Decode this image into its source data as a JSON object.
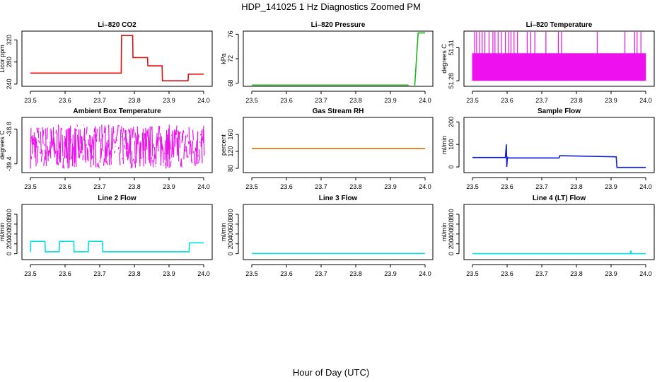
{
  "title": "HDP_141025  1 Hz Diagnostics Zoomed PM",
  "x_caption": "Hour of Day (UTC)",
  "chart_data": [
    {
      "type": "line",
      "title": "Li–820 CO2",
      "ylabel": "Licor ppm",
      "color": "#e01010",
      "xlim": [
        23.5,
        24.0
      ],
      "ylim": [
        236,
        336
      ],
      "xticks": [
        "23.5",
        "23.6",
        "23.7",
        "23.8",
        "23.9",
        "24.0"
      ],
      "yticks": [
        240,
        280,
        320
      ],
      "series": [
        {
          "x": [
            23.5,
            23.762,
            23.763,
            23.795,
            23.796,
            23.838,
            23.839,
            23.88,
            23.881,
            23.955,
            23.956,
            24.0
          ],
          "y": [
            260,
            260,
            328,
            328,
            288,
            288,
            273,
            273,
            246,
            246,
            258,
            258
          ]
        }
      ]
    },
    {
      "type": "line",
      "title": "Li–820 Pressure",
      "ylabel": "kPa",
      "color": "#1ab81a",
      "xlim": [
        23.5,
        24.0
      ],
      "ylim": [
        67.5,
        76.5
      ],
      "xticks": [
        "23.5",
        "23.6",
        "23.7",
        "23.8",
        "23.9",
        "24.0"
      ],
      "yticks": [
        68,
        72,
        76
      ],
      "series": [
        {
          "x": [
            23.5,
            23.95,
            23.96,
            23.97,
            23.98,
            24.0
          ],
          "y": [
            67.7,
            67.7,
            67.4,
            67.4,
            76.2,
            76.2
          ]
        }
      ]
    },
    {
      "type": "line",
      "title": "Li–820 Temperature",
      "ylabel": "degrees C",
      "color": "#ee10ee",
      "xlim": [
        23.5,
        24.0
      ],
      "ylim": [
        51.275,
        51.325
      ],
      "xticks": [
        "23.5",
        "23.6",
        "23.7",
        "23.8",
        "23.9",
        "24.0"
      ],
      "yticks": [
        51.28,
        51.31
      ],
      "series": [
        {
          "band_low": 51.28,
          "band_high": 51.305,
          "spike_top": 51.325,
          "spikes_x": [
            23.506,
            23.512,
            23.52,
            23.528,
            23.536,
            23.548,
            23.559,
            23.565,
            23.574,
            23.583,
            23.595,
            23.605,
            23.611,
            23.62,
            23.63,
            23.658,
            23.668,
            23.68,
            23.712,
            23.748,
            23.757,
            23.86,
            23.94,
            23.968,
            23.975,
            23.986
          ]
        }
      ]
    },
    {
      "type": "line",
      "title": "Ambient Box Temperature",
      "ylabel": "degrees C",
      "color": "#ee10ee",
      "xlim": [
        23.5,
        24.0
      ],
      "ylim": [
        -39.55,
        -38.6
      ],
      "xticks": [
        "23.5",
        "23.6",
        "23.7",
        "23.8",
        "23.9",
        "24.0"
      ],
      "yticks": [
        -39.4,
        -38.8
      ],
      "series": [
        {
          "noise_center": -39.1,
          "noise_amplitude": 0.38
        }
      ]
    },
    {
      "type": "line",
      "title": "Gas Stream RH",
      "ylabel": "percent",
      "color": "#e07000",
      "xlim": [
        23.5,
        24.0
      ],
      "ylim": [
        70,
        200
      ],
      "xticks": [
        "23.5",
        "23.6",
        "23.7",
        "23.8",
        "23.9",
        "24.0"
      ],
      "yticks": [
        80,
        120,
        160
      ],
      "series": [
        {
          "x": [
            23.5,
            24.0
          ],
          "y": [
            127,
            127
          ]
        }
      ]
    },
    {
      "type": "line",
      "title": "Sample Flow",
      "ylabel": "ml/min",
      "color": "#1020cc",
      "xlim": [
        23.5,
        24.0
      ],
      "ylim": [
        -25,
        220
      ],
      "xticks": [
        "23.5",
        "23.6",
        "23.7",
        "23.8",
        "23.9",
        "24.0"
      ],
      "yticks": [
        0,
        100,
        200
      ],
      "series": [
        {
          "x": [
            23.5,
            23.595,
            23.598,
            23.599,
            23.601,
            23.602,
            23.75,
            23.752,
            23.915,
            23.917,
            24.0
          ],
          "y": [
            42,
            42,
            100,
            0,
            45,
            40,
            40,
            50,
            45,
            -2,
            -2
          ]
        }
      ]
    },
    {
      "type": "line",
      "title": "Line 2 Flow",
      "ylabel": "ml/min",
      "color": "#00e0e0",
      "xlim": [
        23.5,
        24.0
      ],
      "ylim": [
        -120,
        1000
      ],
      "xticks": [
        "23.5",
        "23.6",
        "23.7",
        "23.8",
        "23.9",
        "24.0"
      ],
      "yticks": [
        0,
        200,
        400,
        600,
        800
      ],
      "series": [
        {
          "x": [
            23.5,
            23.501,
            23.542,
            23.543,
            23.583,
            23.584,
            23.625,
            23.626,
            23.667,
            23.668,
            23.708,
            23.709,
            23.958,
            23.959,
            24.0
          ],
          "y": [
            40,
            250,
            250,
            40,
            40,
            250,
            250,
            40,
            40,
            250,
            250,
            40,
            40,
            220,
            220
          ]
        }
      ]
    },
    {
      "type": "line",
      "title": "Line 3 Flow",
      "ylabel": "ml/min",
      "color": "#00e0e0",
      "xlim": [
        23.5,
        24.0
      ],
      "ylim": [
        -120,
        1000
      ],
      "xticks": [
        "23.5",
        "23.6",
        "23.7",
        "23.8",
        "23.9",
        "24.0"
      ],
      "yticks": [
        0,
        200,
        400,
        600,
        800
      ],
      "series": [
        {
          "x": [
            23.5,
            24.0
          ],
          "y": [
            5,
            5
          ]
        }
      ]
    },
    {
      "type": "line",
      "title": "Line 4 (LT) Flow",
      "ylabel": "ml/min",
      "color": "#00e0e0",
      "xlim": [
        23.5,
        24.0
      ],
      "ylim": [
        -120,
        1000
      ],
      "xticks": [
        "23.5",
        "23.6",
        "23.7",
        "23.8",
        "23.9",
        "24.0"
      ],
      "yticks": [
        0,
        200,
        400,
        600,
        800
      ],
      "series": [
        {
          "x": [
            23.5,
            23.955,
            23.957,
            23.959,
            24.0
          ],
          "y": [
            0,
            0,
            60,
            0,
            0
          ]
        }
      ]
    }
  ]
}
